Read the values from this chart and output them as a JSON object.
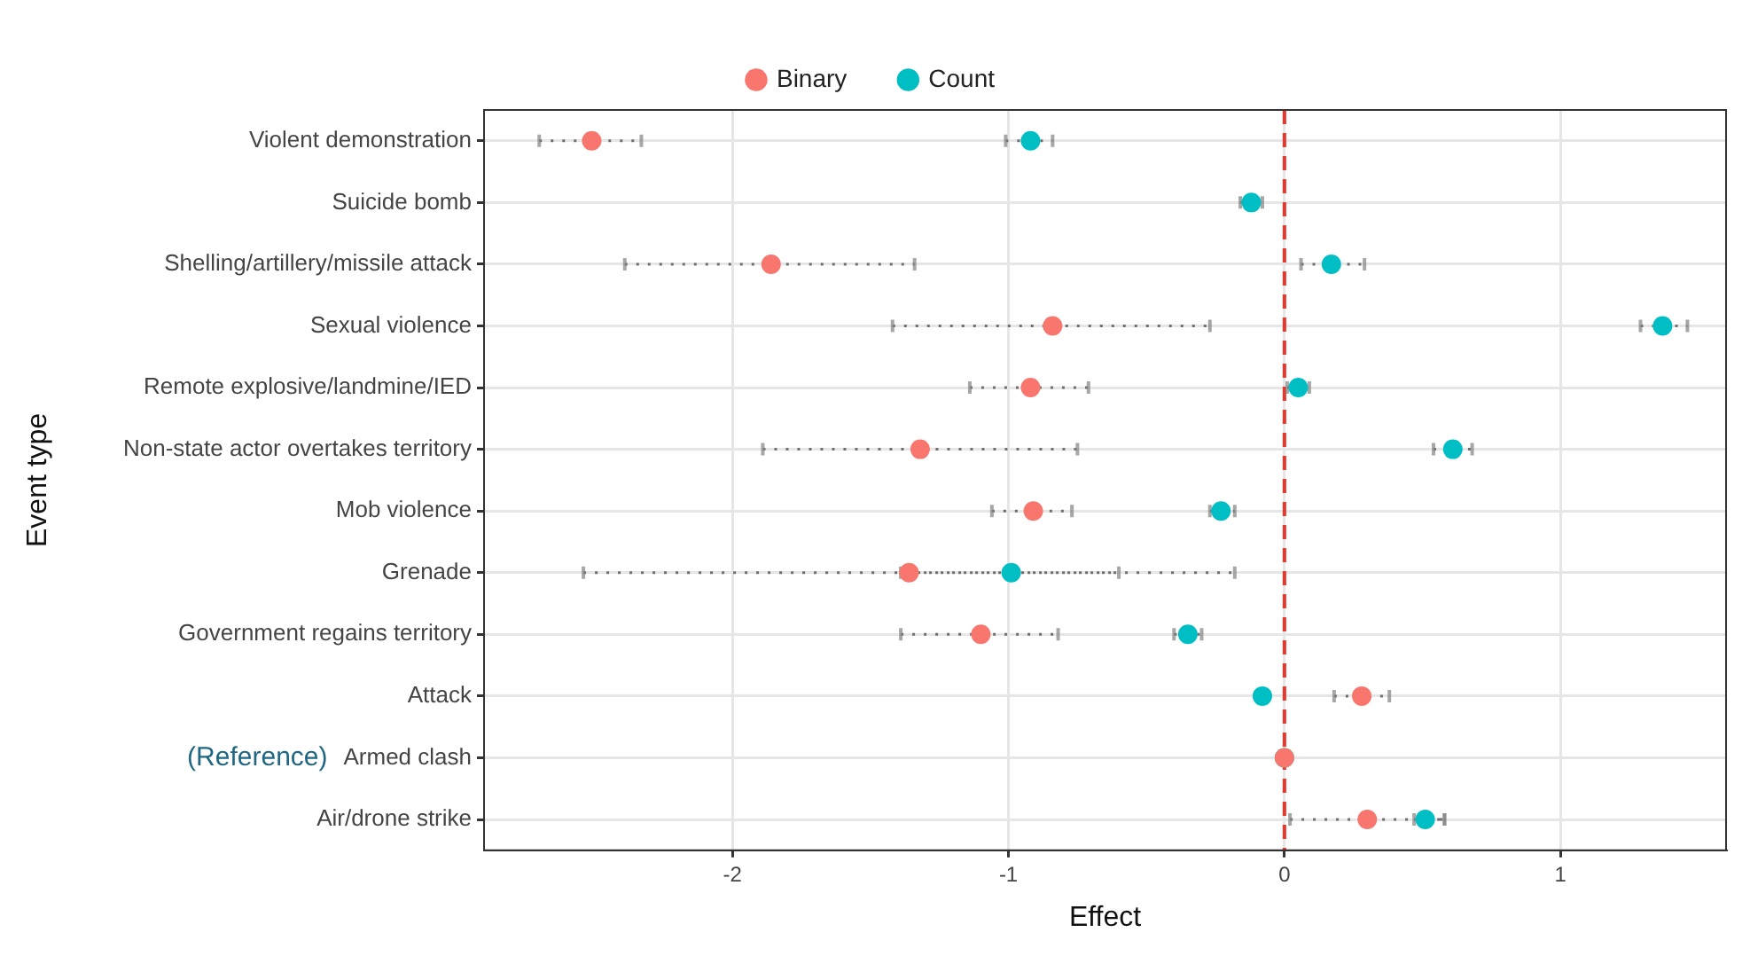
{
  "chart_data": {
    "type": "scatter",
    "xlabel": "Effect",
    "ylabel": "Event type",
    "categories": [
      "Violent demonstration",
      "Suicide bomb",
      "Shelling/artillery/missile attack",
      "Sexual violence",
      "Remote explosive/landmine/IED",
      "Non-state actor overtakes territory",
      "Mob violence",
      "Grenade",
      "Government regains territory",
      "Attack",
      "Armed clash",
      "Air/drone strike"
    ],
    "orientation": "horizontal",
    "xlim": [
      -2.9,
      1.6
    ],
    "xticks": [
      -2,
      -1,
      0,
      1
    ],
    "grid": true,
    "legend": "top",
    "marker": "circle",
    "series": [
      {
        "name": "Binary",
        "color": "#f8766d",
        "values": [
          -2.51,
          null,
          -1.86,
          -0.84,
          -0.92,
          -1.32,
          -0.91,
          -1.36,
          -1.1,
          0.28,
          0,
          0.3
        ],
        "errors": [
          [
            -2.7,
            -2.33
          ],
          null,
          [
            -2.39,
            -1.34
          ],
          [
            -1.42,
            -0.27
          ],
          [
            -1.14,
            -0.71
          ],
          [
            -1.89,
            -0.75
          ],
          [
            -1.06,
            -0.77
          ],
          [
            -2.54,
            -0.18
          ],
          [
            -1.39,
            -0.82
          ],
          [
            0.18,
            0.38
          ],
          null,
          [
            0.02,
            0.58
          ]
        ]
      },
      {
        "name": "Count",
        "color": "#00bfc4",
        "values": [
          -0.92,
          -0.12,
          0.17,
          1.37,
          0.05,
          0.61,
          -0.23,
          -0.99,
          -0.35,
          -0.08,
          0,
          0.51
        ],
        "errors": [
          [
            -1.01,
            -0.84
          ],
          [
            -0.16,
            -0.08
          ],
          [
            0.06,
            0.29
          ],
          [
            1.29,
            1.46
          ],
          [
            0.01,
            0.09
          ],
          [
            0.54,
            0.68
          ],
          [
            -0.27,
            -0.18
          ],
          [
            -1.39,
            -0.6
          ],
          [
            -0.4,
            -0.3
          ],
          null,
          null,
          [
            0.47,
            0.58
          ]
        ]
      }
    ],
    "ref_lines": [
      {
        "axis": "x",
        "value": 0,
        "color": "#e8372c",
        "line_style": "dashed"
      }
    ],
    "annotations": [
      "(Reference)"
    ]
  }
}
